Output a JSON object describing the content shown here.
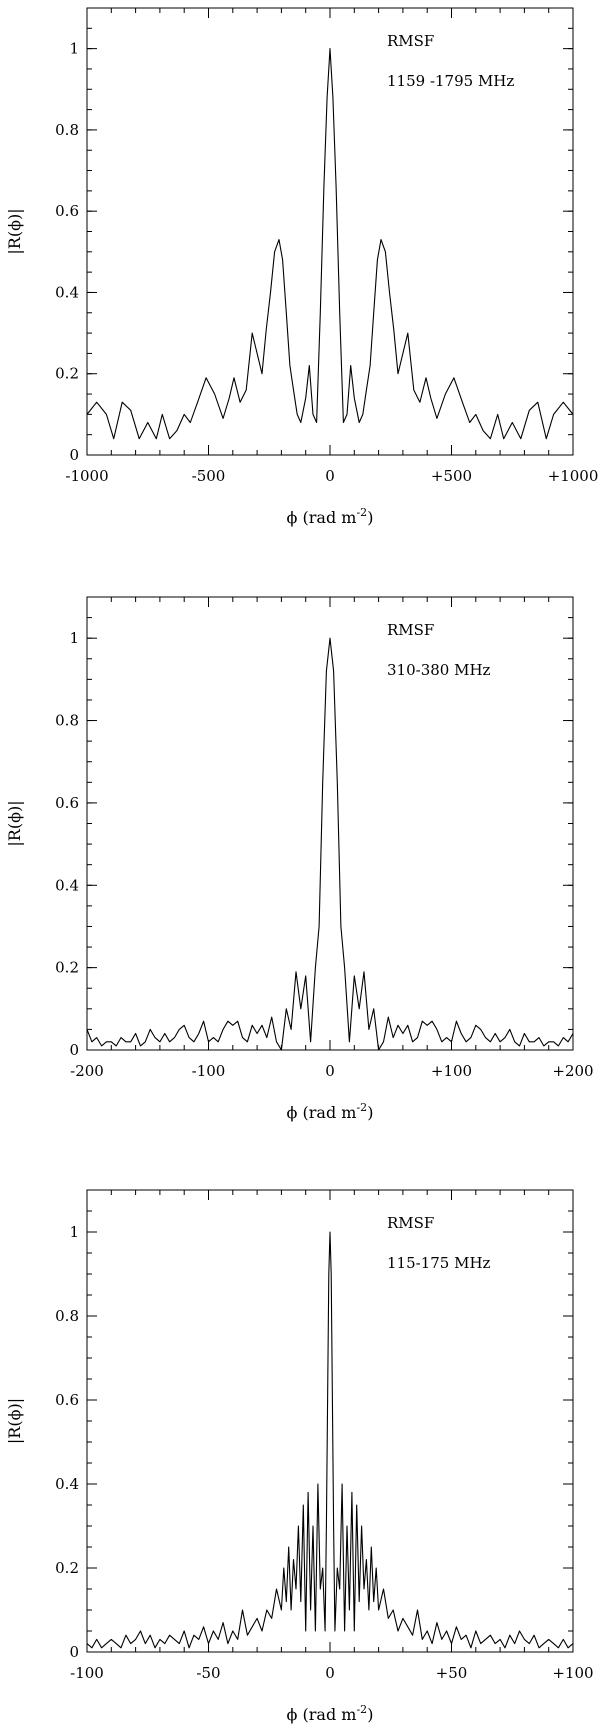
{
  "chart_data": [
    {
      "type": "line",
      "xlabel": "ϕ (rad m",
      "xlabel_sup": "-2",
      "xlabel_end": ")",
      "ylabel": "|R(ϕ)|",
      "annotations": [
        "RMSF",
        "1159 -1795 MHz"
      ],
      "xlim": [
        -1000,
        1000
      ],
      "ylim": [
        0,
        1.1
      ],
      "xticks": [
        -1000,
        -500,
        0,
        500,
        1000
      ],
      "xtick_labels": [
        "-1000",
        "-500",
        "0",
        "+500",
        "+1000"
      ],
      "yticks": [
        0,
        0.2,
        0.4,
        0.6,
        0.8,
        1
      ],
      "ytick_labels": [
        "0",
        "0.2",
        "0.4",
        "0.6",
        "0.8",
        "1"
      ],
      "x_minor_step": 100,
      "y_minor_step": 0.05,
      "grid": false,
      "series": [
        {
          "x": [
            -1000,
            -960,
            -920,
            -890,
            -855,
            -820,
            -785,
            -750,
            -715,
            -690,
            -660,
            -630,
            -600,
            -575,
            -545,
            -510,
            -475,
            -440,
            -415,
            -395,
            -370,
            -345,
            -320,
            -300,
            -280,
            -262,
            -245,
            -228,
            -210,
            -195,
            -180,
            -165,
            -150,
            -135,
            -120,
            -100,
            -85,
            -70,
            -55,
            -40,
            -25,
            -12,
            0,
            12,
            25,
            40,
            55,
            70,
            85,
            100,
            120,
            135,
            150,
            165,
            180,
            195,
            210,
            228,
            245,
            262,
            280,
            300,
            320,
            345,
            370,
            395,
            415,
            440,
            475,
            510,
            545,
            575,
            600,
            630,
            660,
            690,
            715,
            750,
            785,
            820,
            855,
            890,
            920,
            960,
            1000
          ],
          "y": [
            0.1,
            0.13,
            0.1,
            0.04,
            0.13,
            0.11,
            0.04,
            0.08,
            0.04,
            0.1,
            0.04,
            0.06,
            0.1,
            0.08,
            0.13,
            0.19,
            0.15,
            0.09,
            0.14,
            0.19,
            0.13,
            0.16,
            0.3,
            0.25,
            0.2,
            0.31,
            0.4,
            0.5,
            0.53,
            0.48,
            0.35,
            0.22,
            0.16,
            0.1,
            0.08,
            0.14,
            0.22,
            0.1,
            0.08,
            0.35,
            0.66,
            0.88,
            1.0,
            0.88,
            0.66,
            0.35,
            0.08,
            0.1,
            0.22,
            0.14,
            0.08,
            0.1,
            0.16,
            0.22,
            0.35,
            0.48,
            0.53,
            0.5,
            0.4,
            0.31,
            0.2,
            0.25,
            0.3,
            0.16,
            0.13,
            0.19,
            0.14,
            0.09,
            0.15,
            0.19,
            0.13,
            0.08,
            0.1,
            0.06,
            0.04,
            0.1,
            0.04,
            0.08,
            0.04,
            0.11,
            0.13,
            0.04,
            0.1,
            0.13,
            0.1
          ]
        }
      ]
    },
    {
      "type": "line",
      "xlabel": "ϕ (rad m",
      "xlabel_sup": "-2",
      "xlabel_end": ")",
      "ylabel": "|R(ϕ)|",
      "annotations": [
        "RMSF",
        "310-380 MHz"
      ],
      "xlim": [
        -200,
        200
      ],
      "ylim": [
        0,
        1.1
      ],
      "xticks": [
        -200,
        -100,
        0,
        100,
        200
      ],
      "xtick_labels": [
        "-200",
        "-100",
        "0",
        "+100",
        "+200"
      ],
      "yticks": [
        0,
        0.2,
        0.4,
        0.6,
        0.8,
        1
      ],
      "ytick_labels": [
        "0",
        "0.2",
        "0.4",
        "0.6",
        "0.8",
        "1"
      ],
      "x_minor_step": 20,
      "y_minor_step": 0.05,
      "grid": false,
      "series": [
        {
          "x": [
            -200,
            -196,
            -192,
            -188,
            -184,
            -180,
            -176,
            -172,
            -168,
            -164,
            -160,
            -156,
            -152,
            -148,
            -144,
            -140,
            -136,
            -132,
            -128,
            -124,
            -120,
            -116,
            -112,
            -108,
            -104,
            -100,
            -96,
            -92,
            -88,
            -84,
            -80,
            -76,
            -72,
            -68,
            -64,
            -60,
            -56,
            -52,
            -48,
            -44,
            -40,
            -36,
            -32,
            -28,
            -24,
            -20,
            -16,
            -12,
            -9,
            -6,
            -3,
            0,
            3,
            6,
            9,
            12,
            16,
            20,
            24,
            28,
            32,
            36,
            40,
            44,
            48,
            52,
            56,
            60,
            64,
            68,
            72,
            76,
            80,
            84,
            88,
            92,
            96,
            100,
            104,
            108,
            112,
            116,
            120,
            124,
            128,
            132,
            136,
            140,
            144,
            148,
            152,
            156,
            160,
            164,
            168,
            172,
            176,
            180,
            184,
            188,
            192,
            196,
            200
          ],
          "y": [
            0.05,
            0.02,
            0.03,
            0.01,
            0.02,
            0.02,
            0.01,
            0.03,
            0.02,
            0.02,
            0.04,
            0.01,
            0.02,
            0.05,
            0.03,
            0.02,
            0.04,
            0.02,
            0.03,
            0.05,
            0.06,
            0.03,
            0.02,
            0.04,
            0.07,
            0.02,
            0.03,
            0.02,
            0.05,
            0.07,
            0.06,
            0.07,
            0.03,
            0.02,
            0.06,
            0.04,
            0.06,
            0.03,
            0.08,
            0.02,
            0.0,
            0.1,
            0.05,
            0.19,
            0.1,
            0.18,
            0.02,
            0.2,
            0.3,
            0.65,
            0.92,
            1.0,
            0.92,
            0.65,
            0.3,
            0.2,
            0.02,
            0.18,
            0.1,
            0.19,
            0.05,
            0.1,
            0.0,
            0.02,
            0.08,
            0.03,
            0.06,
            0.04,
            0.06,
            0.02,
            0.03,
            0.07,
            0.06,
            0.07,
            0.05,
            0.02,
            0.03,
            0.02,
            0.07,
            0.04,
            0.02,
            0.03,
            0.06,
            0.05,
            0.03,
            0.02,
            0.04,
            0.02,
            0.03,
            0.05,
            0.02,
            0.01,
            0.04,
            0.02,
            0.02,
            0.03,
            0.01,
            0.02,
            0.02,
            0.01,
            0.03,
            0.02,
            0.04
          ]
        }
      ]
    },
    {
      "type": "line",
      "xlabel": "ϕ (rad m",
      "xlabel_sup": "-2",
      "xlabel_end": ")",
      "ylabel": "|R(ϕ)|",
      "annotations": [
        "RMSF",
        "115-175 MHz"
      ],
      "xlim": [
        -100,
        100
      ],
      "ylim": [
        0,
        1.1
      ],
      "xticks": [
        -100,
        -50,
        0,
        50,
        100
      ],
      "xtick_labels": [
        "-100",
        "-50",
        "0",
        "+50",
        "+100"
      ],
      "yticks": [
        0,
        0.2,
        0.4,
        0.6,
        0.8,
        1
      ],
      "ytick_labels": [
        "0",
        "0.2",
        "0.4",
        "0.6",
        "0.8",
        "1"
      ],
      "x_minor_step": 10,
      "y_minor_step": 0.05,
      "grid": false,
      "series": [
        {
          "x": [
            -100,
            -98,
            -96,
            -94,
            -92,
            -90,
            -88,
            -86,
            -84,
            -82,
            -80,
            -78,
            -76,
            -74,
            -72,
            -70,
            -68,
            -66,
            -64,
            -62,
            -60,
            -58,
            -56,
            -54,
            -52,
            -50,
            -48,
            -46,
            -44,
            -42,
            -40,
            -38,
            -36,
            -34,
            -32,
            -30,
            -28,
            -26,
            -24,
            -22,
            -20,
            -19,
            -18,
            -17,
            -16,
            -15,
            -14,
            -13,
            -12,
            -11,
            -10,
            -9,
            -8,
            -7,
            -6,
            -5,
            -4,
            -3,
            -2,
            -1.5,
            -1,
            -0.5,
            0,
            0.5,
            1,
            1.5,
            2,
            3,
            4,
            5,
            6,
            7,
            8,
            9,
            10,
            11,
            12,
            13,
            14,
            15,
            16,
            17,
            18,
            19,
            20,
            22,
            24,
            26,
            28,
            30,
            32,
            34,
            36,
            38,
            40,
            42,
            44,
            46,
            48,
            50,
            52,
            54,
            56,
            58,
            60,
            62,
            64,
            66,
            68,
            70,
            72,
            74,
            76,
            78,
            80,
            82,
            84,
            86,
            88,
            90,
            92,
            94,
            96,
            98,
            100
          ],
          "y": [
            0.02,
            0.01,
            0.03,
            0.01,
            0.02,
            0.03,
            0.02,
            0.01,
            0.04,
            0.02,
            0.03,
            0.05,
            0.02,
            0.04,
            0.01,
            0.03,
            0.02,
            0.04,
            0.03,
            0.02,
            0.05,
            0.01,
            0.04,
            0.03,
            0.06,
            0.02,
            0.05,
            0.03,
            0.07,
            0.02,
            0.05,
            0.03,
            0.1,
            0.04,
            0.06,
            0.08,
            0.05,
            0.1,
            0.08,
            0.15,
            0.1,
            0.2,
            0.12,
            0.25,
            0.1,
            0.22,
            0.15,
            0.3,
            0.12,
            0.35,
            0.05,
            0.38,
            0.1,
            0.3,
            0.05,
            0.4,
            0.15,
            0.2,
            0.05,
            0.3,
            0.6,
            0.9,
            1.0,
            0.9,
            0.6,
            0.3,
            0.05,
            0.2,
            0.15,
            0.4,
            0.05,
            0.3,
            0.1,
            0.38,
            0.05,
            0.35,
            0.12,
            0.3,
            0.15,
            0.22,
            0.1,
            0.25,
            0.12,
            0.2,
            0.1,
            0.15,
            0.08,
            0.1,
            0.05,
            0.08,
            0.06,
            0.04,
            0.1,
            0.03,
            0.05,
            0.02,
            0.07,
            0.03,
            0.05,
            0.02,
            0.06,
            0.03,
            0.04,
            0.01,
            0.05,
            0.02,
            0.03,
            0.04,
            0.02,
            0.03,
            0.01,
            0.04,
            0.02,
            0.05,
            0.03,
            0.02,
            0.04,
            0.01,
            0.02,
            0.03,
            0.02,
            0.01,
            0.03,
            0.01,
            0.02
          ]
        }
      ]
    }
  ]
}
